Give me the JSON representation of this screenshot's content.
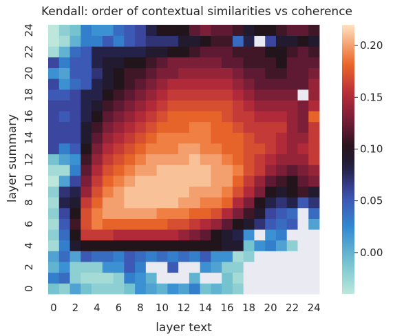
{
  "chart_data": {
    "type": "heatmap",
    "title": "Kendall: order of contextual similarities vs coherence",
    "xlabel": "layer text",
    "ylabel": "layer summary",
    "x_ticks": [
      "0",
      "2",
      "4",
      "6",
      "8",
      "10",
      "12",
      "14",
      "16",
      "18",
      "20",
      "22",
      "24"
    ],
    "y_ticks": [
      "0",
      "2",
      "4",
      "6",
      "8",
      "10",
      "12",
      "14",
      "16",
      "18",
      "20",
      "22",
      "24"
    ],
    "n_rows": 25,
    "n_cols": 25,
    "colorbar": {
      "min": -0.04,
      "max": 0.22,
      "ticks": [
        "0.00",
        "0.05",
        "0.10",
        "0.15",
        "0.20"
      ],
      "tick_values": [
        0.0,
        0.05,
        0.1,
        0.15,
        0.2
      ],
      "colormap": "icefire"
    },
    "missing_color": "#eaeaf2",
    "note_rows": "values[i] is layer summary i (0 at bottom), values[i][j] is layer text j; null = no value",
    "values": [
      [
        -0.01,
        -0.02,
        0.01,
        -0.01,
        -0.02,
        -0.02,
        -0.02,
        -0.01,
        0.02,
        0.01,
        0.0,
        0.02,
        0.01,
        0.03,
        -0.01,
        0.0,
        -0.01,
        -0.02,
        null,
        null,
        null,
        null,
        null,
        null,
        null
      ],
      [
        0.03,
        0.04,
        -0.02,
        -0.03,
        -0.03,
        -0.03,
        -0.02,
        0.03,
        0.02,
        0.0,
        null,
        null,
        null,
        0.0,
        null,
        null,
        -0.01,
        -0.03,
        null,
        null,
        null,
        null,
        null,
        null,
        null
      ],
      [
        0.0,
        0.02,
        -0.02,
        -0.02,
        -0.02,
        0.02,
        0.02,
        0.05,
        0.03,
        null,
        null,
        0.05,
        null,
        null,
        0.02,
        0.01,
        -0.02,
        -0.02,
        null,
        null,
        null,
        null,
        null,
        null,
        null
      ],
      [
        0.01,
        0.04,
        0.01,
        0.05,
        0.04,
        0.04,
        0.03,
        0.05,
        0.04,
        0.03,
        0.04,
        0.03,
        0.04,
        0.03,
        0.05,
        0.02,
        0.02,
        -0.03,
        -0.02,
        null,
        null,
        null,
        null,
        null,
        null
      ],
      [
        -0.03,
        0.03,
        0.09,
        0.1,
        0.1,
        0.1,
        0.1,
        0.1,
        0.1,
        0.1,
        0.1,
        0.1,
        0.1,
        0.1,
        0.1,
        0.1,
        0.09,
        0.09,
        -0.01,
        0.02,
        0.03,
        0.01,
        -0.02,
        null,
        null
      ],
      [
        -0.02,
        0.04,
        0.1,
        0.16,
        0.16,
        0.16,
        0.15,
        0.15,
        0.15,
        0.15,
        0.15,
        0.15,
        0.14,
        0.13,
        0.12,
        0.1,
        0.09,
        0.08,
        0.02,
        null,
        0.02,
        0.03,
        null,
        null,
        null
      ],
      [
        -0.03,
        0.05,
        0.11,
        0.17,
        0.19,
        0.18,
        0.18,
        0.18,
        0.18,
        0.18,
        0.18,
        0.17,
        0.17,
        0.16,
        0.15,
        0.14,
        0.12,
        0.1,
        0.09,
        0.07,
        0.05,
        0.04,
        0.05,
        null,
        0.01
      ],
      [
        -0.02,
        0.06,
        0.1,
        0.17,
        0.19,
        0.2,
        0.2,
        0.2,
        0.2,
        0.2,
        0.19,
        0.19,
        0.19,
        0.18,
        0.18,
        0.17,
        0.15,
        0.13,
        0.11,
        0.09,
        0.06,
        0.05,
        0.04,
        null,
        0.04
      ],
      [
        -0.03,
        0.08,
        0.09,
        0.16,
        0.18,
        0.2,
        0.2,
        0.21,
        0.21,
        0.21,
        0.21,
        0.21,
        0.2,
        0.2,
        0.19,
        0.19,
        0.18,
        0.15,
        0.13,
        0.1,
        0.08,
        0.07,
        0.08,
        0.05,
        0.07
      ],
      [
        -0.02,
        0.07,
        0.08,
        0.14,
        0.17,
        0.19,
        0.2,
        0.21,
        0.21,
        0.21,
        0.21,
        0.21,
        0.21,
        0.2,
        0.2,
        0.2,
        0.19,
        0.17,
        0.15,
        0.13,
        0.1,
        0.09,
        0.1,
        0.11,
        0.09
      ],
      [
        -0.04,
        0.01,
        0.06,
        0.13,
        0.16,
        0.18,
        0.19,
        0.2,
        0.21,
        0.21,
        0.21,
        0.21,
        0.21,
        0.21,
        0.21,
        0.2,
        0.2,
        0.18,
        0.16,
        0.14,
        0.12,
        0.11,
        0.1,
        0.12,
        0.13
      ],
      [
        -0.03,
        -0.03,
        0.03,
        0.12,
        0.15,
        0.17,
        0.18,
        0.19,
        0.2,
        0.2,
        0.21,
        0.21,
        0.21,
        0.21,
        0.21,
        0.2,
        0.2,
        0.19,
        0.17,
        0.16,
        0.14,
        0.13,
        0.12,
        0.13,
        0.14
      ],
      [
        -0.01,
        0.01,
        0.02,
        0.11,
        0.14,
        0.16,
        0.17,
        0.18,
        0.19,
        0.2,
        0.2,
        0.2,
        0.2,
        0.21,
        0.2,
        0.2,
        0.19,
        0.18,
        0.17,
        0.16,
        0.15,
        0.14,
        0.14,
        0.14,
        0.16
      ],
      [
        0.06,
        0.03,
        0.05,
        0.1,
        0.13,
        0.15,
        0.16,
        0.17,
        0.18,
        0.19,
        0.19,
        0.19,
        0.2,
        0.2,
        0.19,
        0.19,
        0.18,
        0.18,
        0.17,
        0.17,
        0.16,
        0.15,
        0.14,
        0.15,
        0.16
      ],
      [
        0.06,
        0.06,
        0.06,
        0.09,
        0.12,
        0.14,
        0.15,
        0.16,
        0.17,
        0.18,
        0.19,
        0.19,
        0.19,
        0.19,
        0.19,
        0.18,
        0.18,
        0.18,
        0.17,
        0.16,
        0.16,
        0.15,
        0.14,
        0.14,
        0.16
      ],
      [
        0.06,
        0.06,
        0.06,
        0.09,
        0.11,
        0.13,
        0.14,
        0.15,
        0.16,
        0.17,
        0.18,
        0.18,
        0.18,
        0.19,
        0.19,
        0.18,
        0.18,
        0.17,
        0.16,
        0.16,
        0.16,
        0.16,
        0.14,
        0.13,
        0.16
      ],
      [
        0.06,
        0.05,
        0.06,
        0.08,
        0.1,
        0.12,
        0.13,
        0.14,
        0.15,
        0.16,
        0.17,
        0.18,
        0.18,
        0.18,
        0.18,
        0.18,
        0.17,
        0.16,
        0.16,
        0.15,
        0.15,
        0.15,
        0.14,
        0.13,
        0.18
      ],
      [
        0.06,
        0.06,
        0.06,
        0.08,
        0.09,
        0.11,
        0.12,
        0.13,
        0.14,
        0.15,
        0.16,
        0.17,
        0.17,
        0.17,
        0.17,
        0.17,
        0.17,
        0.16,
        0.15,
        0.14,
        0.14,
        0.14,
        0.14,
        0.13,
        0.15
      ],
      [
        0.05,
        0.05,
        0.06,
        0.08,
        0.08,
        0.1,
        0.11,
        0.12,
        0.13,
        0.14,
        0.15,
        0.16,
        0.16,
        0.16,
        0.16,
        0.16,
        0.16,
        0.15,
        0.14,
        0.13,
        0.13,
        0.13,
        0.13,
        null,
        0.14
      ],
      [
        0.06,
        0.02,
        0.04,
        0.05,
        0.08,
        0.09,
        0.1,
        0.11,
        0.12,
        0.13,
        0.14,
        0.15,
        0.15,
        0.15,
        0.15,
        0.15,
        0.15,
        0.14,
        0.13,
        0.12,
        0.12,
        0.12,
        0.12,
        0.12,
        0.14
      ],
      [
        0.02,
        0.01,
        0.05,
        0.05,
        0.07,
        0.09,
        0.1,
        0.11,
        0.11,
        0.12,
        0.13,
        0.13,
        0.14,
        0.14,
        0.14,
        0.14,
        0.14,
        0.13,
        0.12,
        0.12,
        0.11,
        0.11,
        0.12,
        0.12,
        0.13
      ],
      [
        0.06,
        0.03,
        0.05,
        0.05,
        0.08,
        0.09,
        0.09,
        0.1,
        0.1,
        0.11,
        0.12,
        0.13,
        0.13,
        0.13,
        0.13,
        0.13,
        0.12,
        0.12,
        0.11,
        0.11,
        0.11,
        0.1,
        0.12,
        0.12,
        0.12
      ],
      [
        -0.03,
        0.0,
        0.04,
        0.05,
        0.08,
        0.08,
        0.08,
        0.08,
        0.08,
        0.09,
        0.09,
        0.1,
        0.1,
        0.11,
        0.12,
        0.12,
        0.12,
        0.11,
        0.11,
        0.11,
        0.1,
        0.1,
        0.11,
        0.12,
        0.11
      ],
      [
        -0.04,
        -0.03,
        0.0,
        0.03,
        0.03,
        0.05,
        0.03,
        0.05,
        0.06,
        0.07,
        0.07,
        0.07,
        0.09,
        0.09,
        0.1,
        0.11,
        0.11,
        0.04,
        0.08,
        null,
        0.06,
        0.09,
        0.09,
        0.1,
        0.09
      ],
      [
        -0.04,
        -0.02,
        -0.01,
        0.03,
        0.02,
        0.02,
        0.04,
        0.05,
        0.06,
        0.08,
        0.1,
        0.1,
        0.1,
        0.12,
        0.13,
        0.12,
        0.12,
        0.11,
        0.09,
        0.1,
        0.1,
        0.11,
        0.12,
        0.12,
        0.11
      ]
    ]
  }
}
